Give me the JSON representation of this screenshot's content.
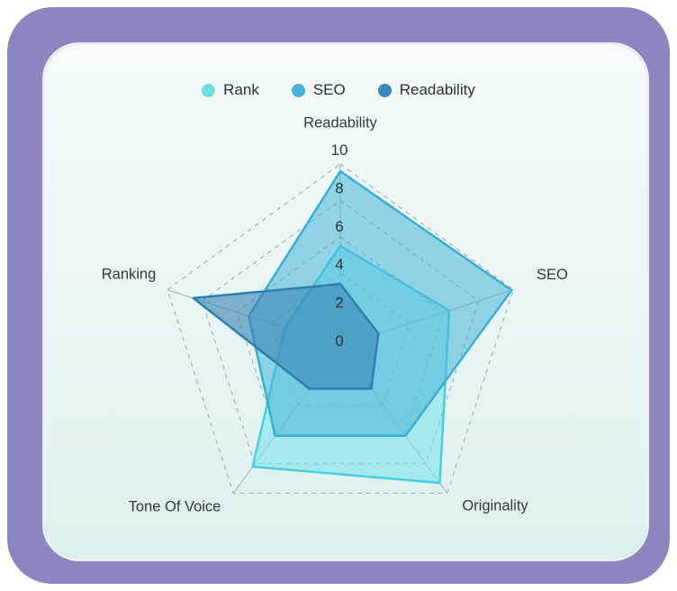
{
  "card": {
    "frame_color": "#8e86bf",
    "panel_bg_top": "#f4fbfa",
    "panel_bg_bottom": "#dcf1ed"
  },
  "legend": {
    "position": "top"
  },
  "chart_data": {
    "type": "radar",
    "categories": [
      "Readability",
      "SEO",
      "Originality",
      "Tone Of Voice",
      "Ranking"
    ],
    "series": [
      {
        "name": "Rank",
        "values": [
          5.5,
          6.3,
          9.3,
          8.2,
          3.2
        ],
        "stroke": "#49cedc",
        "fill": "rgba(124,227,233,0.6)",
        "dot_color": "#6fdce2",
        "stroke_width": 2.5
      },
      {
        "name": "SEO",
        "values": [
          9.6,
          9.9,
          6.1,
          6.1,
          5.3
        ],
        "stroke": "#3aafd4",
        "fill": "rgba(69,180,216,0.55)",
        "dot_color": "#47b4d6",
        "stroke_width": 2.5
      },
      {
        "name": "Readability",
        "values": [
          3.4,
          2.2,
          2.9,
          2.9,
          8.5
        ],
        "stroke": "#2e7eae",
        "fill": "rgba(55,130,176,0.6)",
        "dot_color": "#3a89ba",
        "stroke_width": 2.5
      }
    ],
    "ticks": [
      0,
      2,
      4,
      6,
      8,
      10
    ],
    "axis_range": [
      0,
      10
    ],
    "grid": "dashed pentagons with solid spokes",
    "legend_position": "top"
  }
}
